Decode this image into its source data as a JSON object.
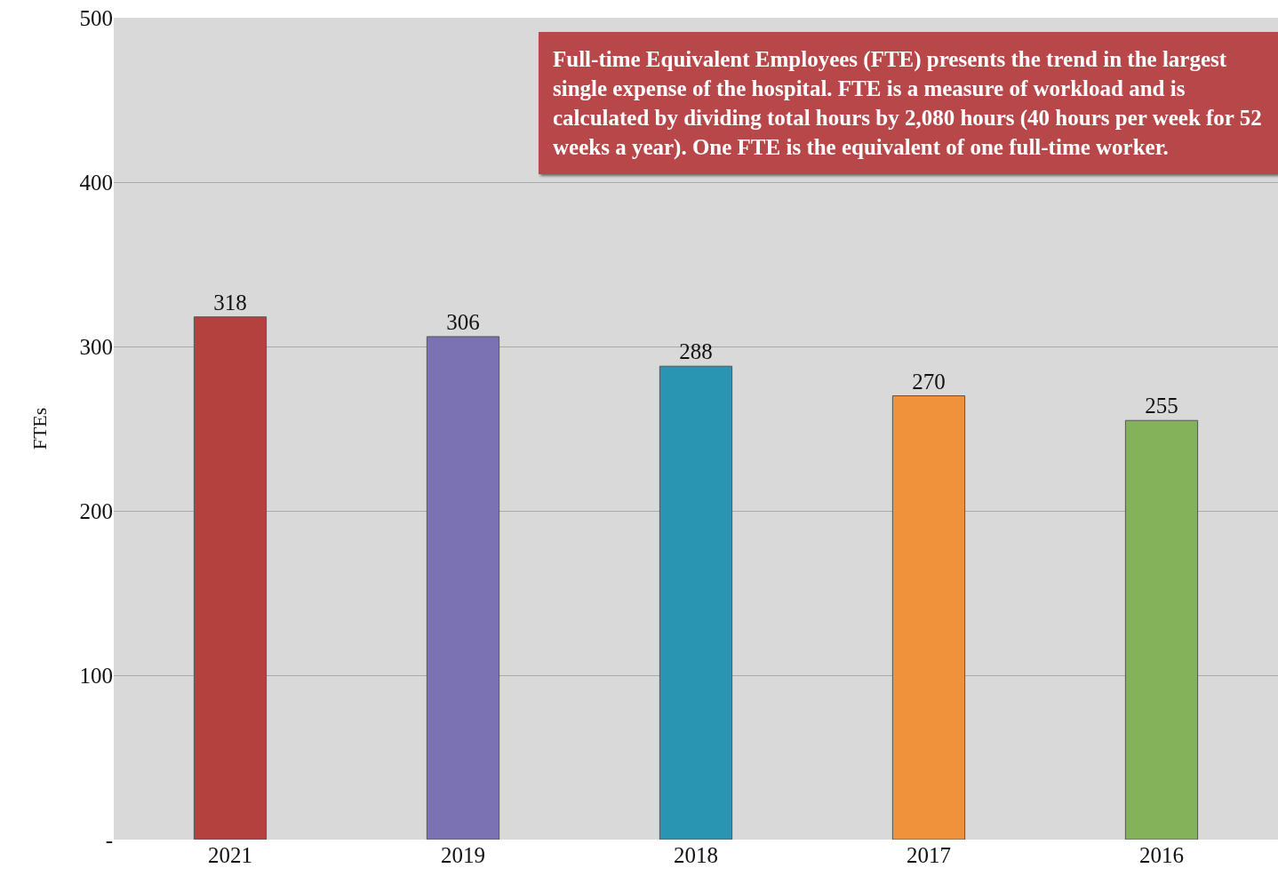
{
  "chart_data": {
    "type": "bar",
    "ylabel": "FTEs",
    "categories": [
      "2021",
      "2019",
      "2018",
      "2017",
      "2016"
    ],
    "values": [
      318,
      306,
      288,
      270,
      255
    ],
    "colors": [
      "#b5413f",
      "#7a72b2",
      "#2a94b3",
      "#f0913c",
      "#84b25a"
    ],
    "ylim": [
      0,
      500
    ],
    "yticks": [
      {
        "value": 0,
        "label": "-"
      },
      100,
      200,
      300,
      400,
      500
    ],
    "grid": "y",
    "data_labels": true,
    "annotations": [
      "Full-time Equivalent Employees (FTE) presents the trend in the largest single expense of the hospital. FTE is a measure of workload and is calculated by dividing total hours by 2,080 hours (40 hours per week for 52 weeks a year). One FTE is the equivalent of one full-time worker."
    ]
  }
}
